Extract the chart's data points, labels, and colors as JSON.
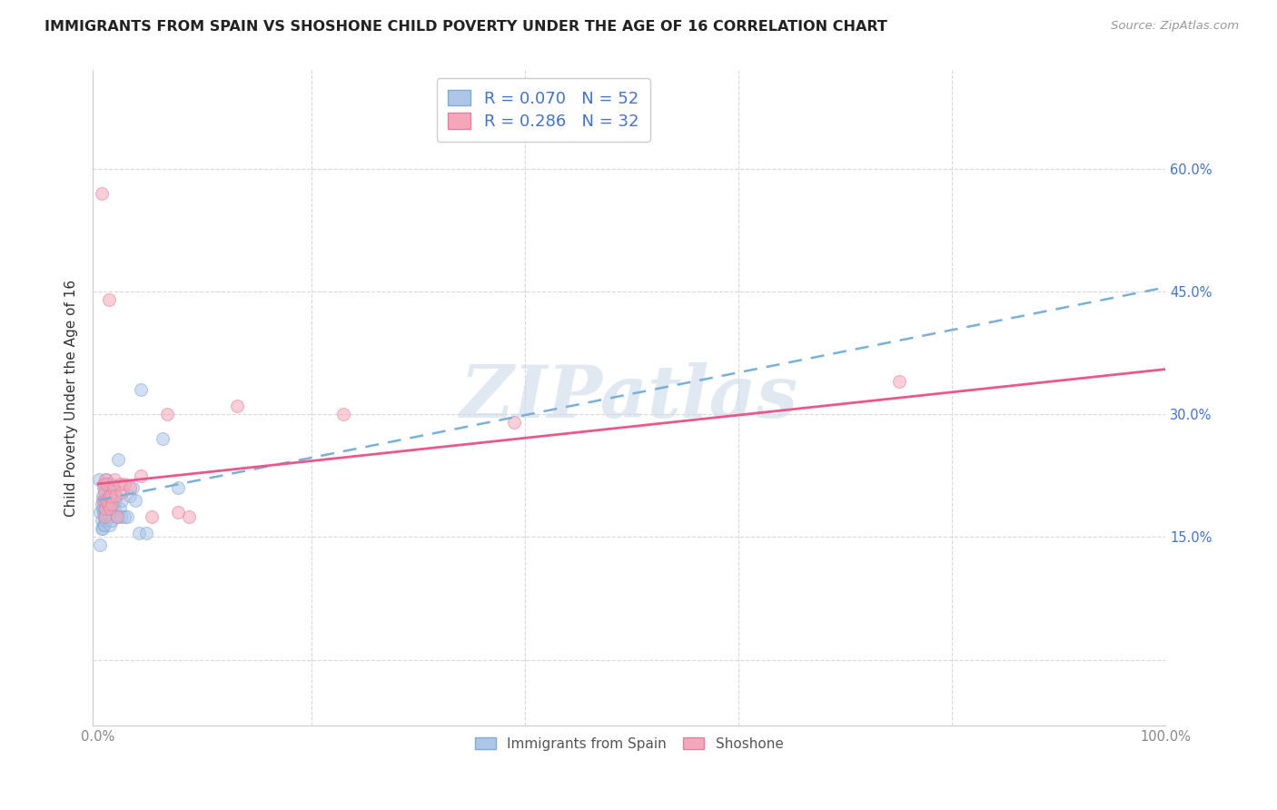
{
  "title": "IMMIGRANTS FROM SPAIN VS SHOSHONE CHILD POVERTY UNDER THE AGE OF 16 CORRELATION CHART",
  "source": "Source: ZipAtlas.com",
  "ylabel": "Child Poverty Under the Age of 16",
  "xlim": [
    -0.005,
    1.0
  ],
  "ylim": [
    -0.08,
    0.72
  ],
  "xticks": [
    0.0,
    0.2,
    0.4,
    0.6,
    0.8,
    1.0
  ],
  "xtick_labels": [
    "0.0%",
    "",
    "",
    "",
    "",
    "100.0%"
  ],
  "ytick_positions": [
    0.0,
    0.15,
    0.3,
    0.45,
    0.6
  ],
  "right_ytick_labels": [
    "",
    "15.0%",
    "30.0%",
    "45.0%",
    "60.0%"
  ],
  "legend_text_color": "#4472c4",
  "blue_scatter_color": "#aec6e8",
  "pink_scatter_color": "#f4a7b9",
  "blue_line_color": "#7ab0d8",
  "pink_line_color": "#e8588a",
  "watermark": "ZIPatlas",
  "watermark_color": "#ccd9e8",
  "background_color": "#ffffff",
  "grid_color": "#d8d8d8",
  "blue_scatter_x": [
    0.001,
    0.002,
    0.002,
    0.003,
    0.003,
    0.003,
    0.004,
    0.004,
    0.004,
    0.005,
    0.005,
    0.005,
    0.005,
    0.006,
    0.006,
    0.006,
    0.006,
    0.007,
    0.007,
    0.007,
    0.008,
    0.008,
    0.008,
    0.009,
    0.009,
    0.01,
    0.01,
    0.01,
    0.011,
    0.011,
    0.012,
    0.013,
    0.013,
    0.014,
    0.015,
    0.016,
    0.017,
    0.018,
    0.019,
    0.02,
    0.021,
    0.022,
    0.025,
    0.027,
    0.03,
    0.032,
    0.035,
    0.038,
    0.04,
    0.045,
    0.06,
    0.075
  ],
  "blue_scatter_y": [
    0.22,
    0.18,
    0.14,
    0.19,
    0.17,
    0.16,
    0.2,
    0.185,
    0.16,
    0.21,
    0.195,
    0.18,
    0.165,
    0.195,
    0.175,
    0.185,
    0.165,
    0.195,
    0.18,
    0.17,
    0.22,
    0.19,
    0.175,
    0.205,
    0.19,
    0.21,
    0.19,
    0.175,
    0.175,
    0.165,
    0.215,
    0.17,
    0.185,
    0.19,
    0.185,
    0.195,
    0.2,
    0.175,
    0.245,
    0.185,
    0.175,
    0.195,
    0.175,
    0.175,
    0.2,
    0.21,
    0.195,
    0.155,
    0.33,
    0.155,
    0.27,
    0.21
  ],
  "pink_scatter_x": [
    0.003,
    0.004,
    0.005,
    0.006,
    0.006,
    0.007,
    0.007,
    0.008,
    0.008,
    0.009,
    0.01,
    0.01,
    0.011,
    0.012,
    0.013,
    0.014,
    0.015,
    0.016,
    0.018,
    0.02,
    0.022,
    0.025,
    0.03,
    0.04,
    0.05,
    0.065,
    0.075,
    0.085,
    0.13,
    0.23,
    0.39,
    0.75
  ],
  "pink_scatter_y": [
    0.57,
    0.195,
    0.215,
    0.205,
    0.175,
    0.22,
    0.185,
    0.215,
    0.195,
    0.19,
    0.44,
    0.2,
    0.185,
    0.2,
    0.19,
    0.21,
    0.22,
    0.2,
    0.175,
    0.215,
    0.205,
    0.215,
    0.21,
    0.225,
    0.175,
    0.3,
    0.18,
    0.175,
    0.31,
    0.3,
    0.29,
    0.34
  ],
  "blue_line_y_start": 0.195,
  "blue_line_y_end": 0.455,
  "pink_line_y_start": 0.215,
  "pink_line_y_end": 0.355,
  "legend_entry_blue": "R = 0.070   N = 52",
  "legend_entry_pink": "R = 0.286   N = 32",
  "title_fontsize": 11.5,
  "axis_label_fontsize": 11,
  "tick_fontsize": 10.5,
  "legend_fontsize": 13,
  "source_fontsize": 9.5,
  "scatter_size": 100,
  "scatter_alpha": 0.55,
  "scatter_linewidth": 0.8,
  "scatter_edgecolor_blue": "#80aad0",
  "scatter_edgecolor_pink": "#e080a0"
}
